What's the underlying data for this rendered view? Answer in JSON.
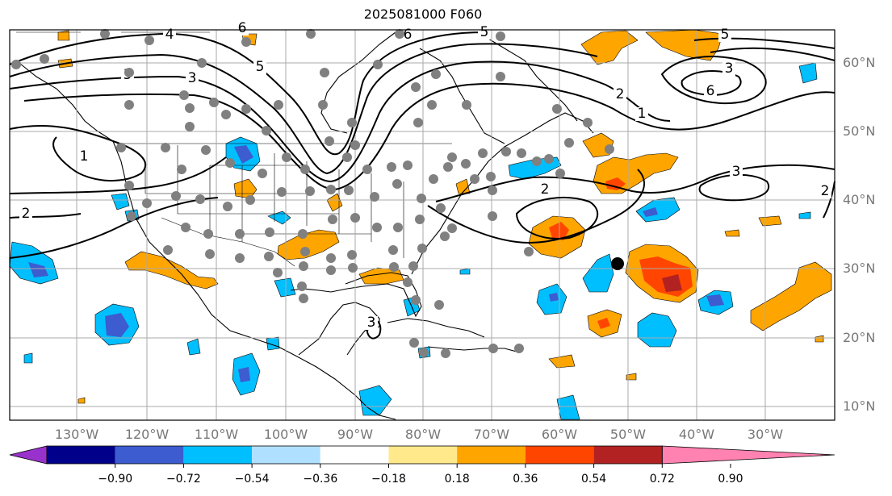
{
  "title": "2025081000 F060",
  "lat_labels": [
    "60°N",
    "50°N",
    "40°N",
    "30°N",
    "20°N",
    "10°N"
  ],
  "lon_labels": [
    "130°W",
    "120°W",
    "110°W",
    "100°W",
    "90°W",
    "80°W",
    "70°W",
    "60°W",
    "50°W",
    "40°W",
    "30°W"
  ],
  "colorbar": {
    "colors": [
      "#9932cc",
      "#00008b",
      "#3c5ccf",
      "#00bfff",
      "#b0e0ff",
      "#ffffff",
      "#ffe98a",
      "#ffa500",
      "#ff4500",
      "#b22222",
      "#ff82b0"
    ],
    "ticks": [
      "−0.90",
      "−0.72",
      "−0.54",
      "−0.36",
      "−0.18",
      "0.18",
      "0.36",
      "0.54",
      "0.72",
      "0.90"
    ]
  },
  "contour_labels": [
    "3",
    "4",
    "5",
    "6",
    "5",
    "6",
    "5",
    "5",
    "6",
    "3",
    "2",
    "1",
    "1",
    "2",
    "2",
    "3",
    "2",
    "3"
  ],
  "colors": {
    "station_marker": "#808080",
    "storm_marker": "#000000",
    "grid": "#aaaaaa"
  }
}
